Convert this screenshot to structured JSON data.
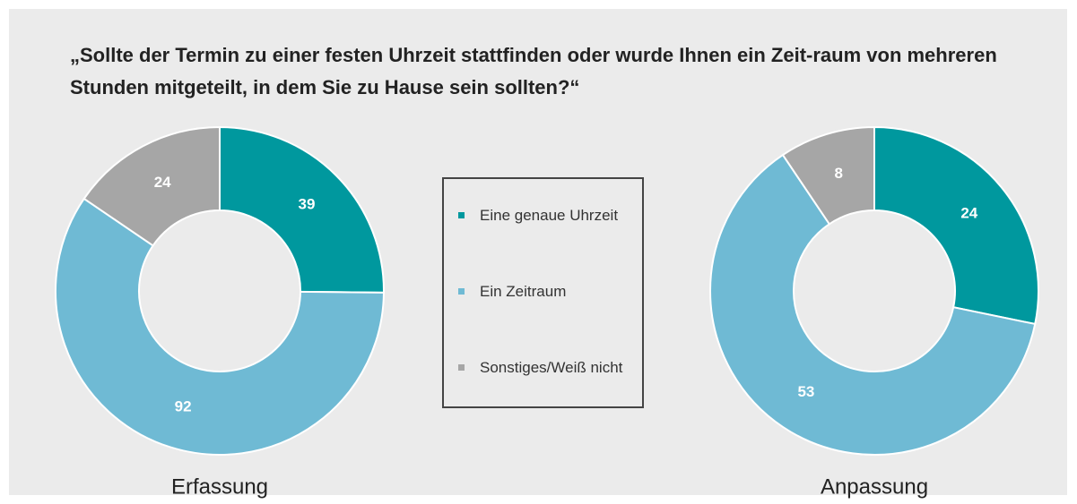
{
  "title": "„Sollte der Termin zu einer festen Uhrzeit stattfinden oder wurde Ihnen ein Zeit-raum von mehreren Stunden mitgeteilt, in dem Sie zu Hause sein sollten?“",
  "chart_data": [
    {
      "type": "donut",
      "label": "Erfassung",
      "categories": [
        "Eine genaue Uhrzeit",
        "Ein Zeitraum",
        "Sonstiges/Weiß nicht"
      ],
      "values": [
        39,
        92,
        24
      ],
      "colors": [
        "#00989e",
        "#6fbad4",
        "#a6a6a6"
      ],
      "legend": true
    },
    {
      "type": "donut",
      "label": "Anpassung",
      "categories": [
        "Eine genaue Uhrzeit",
        "Ein Zeitraum",
        "Sonstiges/Weiß nicht"
      ],
      "values": [
        24,
        53,
        8
      ],
      "colors": [
        "#00989e",
        "#6fbad4",
        "#a6a6a6"
      ],
      "legend": false
    }
  ]
}
